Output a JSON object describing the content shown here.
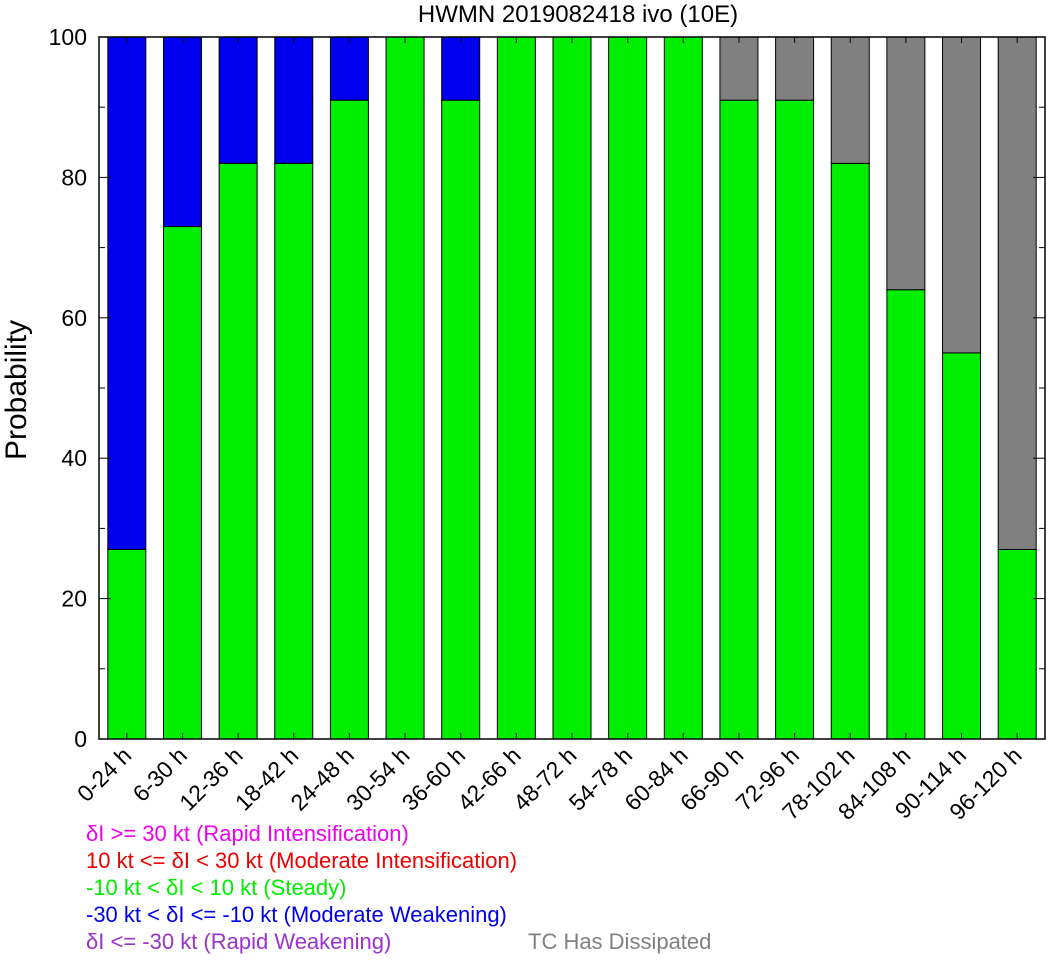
{
  "chart_data": {
    "type": "bar",
    "stacked": true,
    "title": "HWMN 2019082418 ivo (10E)",
    "ylabel": "Probability",
    "ylim": [
      0,
      100
    ],
    "yticks": [
      "0",
      "20",
      "40",
      "60",
      "80",
      "100"
    ],
    "categories": [
      "0-24 h",
      "6-30 h",
      "12-36 h",
      "18-42 h",
      "24-48 h",
      "30-54 h",
      "36-60 h",
      "42-66 h",
      "48-72 h",
      "54-78 h",
      "60-84 h",
      "66-90 h",
      "72-96 h",
      "78-102 h",
      "84-108 h",
      "90-114 h",
      "96-120 h"
    ],
    "series": [
      {
        "name": "-10 kt < δI < 10 kt (Steady)",
        "color": "#00ee00",
        "values": [
          27,
          73,
          82,
          82,
          91,
          100,
          91,
          100,
          100,
          100,
          100,
          91,
          91,
          82,
          64,
          55,
          27
        ]
      },
      {
        "name": "-30 kt < δI <= -10 kt (Moderate Weakening)",
        "color": "#0000ee",
        "values": [
          73,
          27,
          18,
          18,
          9,
          0,
          9,
          0,
          0,
          0,
          0,
          0,
          0,
          0,
          0,
          0,
          0
        ]
      },
      {
        "name": "TC Has Dissipated",
        "color": "#808080",
        "values": [
          0,
          0,
          0,
          0,
          0,
          0,
          0,
          0,
          0,
          0,
          0,
          9,
          9,
          18,
          36,
          45,
          73
        ]
      }
    ],
    "legend": {
      "ri": {
        "text": "δI >= 30 kt (Rapid Intensification)",
        "color": "#ee00ee"
      },
      "mi": {
        "text": "10 kt <= δI < 30 kt (Moderate Intensification)",
        "color": "#ee0000"
      },
      "steady": {
        "text": "-10 kt < δI < 10 kt (Steady)",
        "color": "#00ee00"
      },
      "mw": {
        "text": "-30 kt < δI <= -10 kt (Moderate Weakening)",
        "color": "#0000ee"
      },
      "rw": {
        "text": "δI <= -30 kt (Rapid Weakening)",
        "color": "#9a32cd"
      },
      "dissipated": {
        "text": "TC Has Dissipated",
        "color": "#808080"
      }
    }
  }
}
